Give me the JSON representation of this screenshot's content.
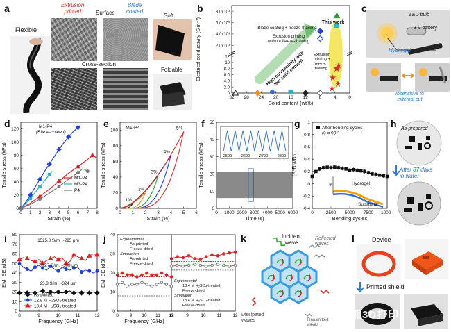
{
  "labels": {
    "a": "a",
    "b": "b",
    "c": "c",
    "d": "d",
    "e": "e",
    "f": "f",
    "g": "g",
    "h": "h",
    "i": "i",
    "j": "j",
    "k": "k",
    "l": "l"
  },
  "panel_a": {
    "flexible": "Flexible",
    "extrusion": "Extrusion\nprinted",
    "surface": "Surface",
    "blade": "Blade\ncoated",
    "cross_section": "Cross-section",
    "soft": "Soft",
    "foldable": "Foldable"
  },
  "panel_c": {
    "led": "LED bulb",
    "battery": "3 V battery",
    "hydrogel": "Hydrogel",
    "insensitive": "Insensitive to\nexternal cut"
  },
  "panel_h": {
    "as_prepared": "As-prepared",
    "after": "After 87 days\nin water"
  },
  "panel_k": {
    "incident": "Incident\nwave",
    "reflected": "Reflected\nwaves",
    "dissipated": "Dissipated\nwaves",
    "transmitted": "Transmitted\nwaves"
  },
  "panel_l": {
    "device": "Device",
    "printed_shield": "Printed shield",
    "watermark": "熊3D打印"
  },
  "colors": {
    "red": "#d62728",
    "blue": "#1f3fd6",
    "cyan": "#2bb5c8",
    "orange": "#f28c28",
    "green": "#2ca02c",
    "yellow": "#f4e24a",
    "hex": "#3a9be0"
  },
  "chart_data": [
    {
      "id": "b",
      "type": "scatter",
      "xlabel": "Solid content (wt%)",
      "ylabel": "Electrical conductivity (S m⁻¹)",
      "xticks": [
        "32",
        "28",
        "24",
        "20",
        "16",
        "12",
        "8",
        "4",
        "0"
      ],
      "yticks": [
        "0",
        "2.0",
        "4.0",
        "6.0",
        "8.0",
        "10",
        "12",
        "2.0x10³",
        "4.0x10³",
        "6.0x10³",
        "8.0x10³"
      ],
      "annotations": [
        "This work",
        "Blade coating + freeze-thawing",
        "Extrusion printing\nwithout freeze-thawing",
        "Extrusion\nprinting +\nfreeze-\nthawing",
        "High conductivity with\nlow solid content"
      ],
      "series": [
        {
          "shape": "triangle-open",
          "color": "#222222",
          "x": 31,
          "y": 0
        },
        {
          "shape": "diamond",
          "color": "#f28c28",
          "x": 25,
          "y": 0
        },
        {
          "shape": "circle",
          "color": "#3a6ed6",
          "x": 21,
          "y": 0.3
        },
        {
          "shape": "square",
          "color": "#2bb5c8",
          "x": 16,
          "y": 0.3
        },
        {
          "shape": "diamond",
          "color": "#222222",
          "x": 12,
          "y": 0
        },
        {
          "shape": "diamond-open",
          "color": "#555555",
          "x": 8,
          "y": 0
        },
        {
          "shape": "diamond",
          "color": "#1f3fd6",
          "x": 8,
          "y": 4500
        },
        {
          "shape": "diamond-open",
          "color": "#1f3fd6",
          "x": 8,
          "y": 3200
        },
        {
          "shape": "triangle",
          "color": "#2ca02c",
          "x": 3.5,
          "y": 7200
        },
        {
          "shape": "square",
          "color": "#2bb5c8",
          "x": 3.5,
          "y": 5400
        },
        {
          "shape": "star",
          "color": "#d62728",
          "x": 3.5,
          "y": 8
        }
      ]
    },
    {
      "id": "d",
      "type": "line",
      "xlabel": "Strain (%)",
      "ylabel": "Tensile stress (kPa)",
      "xlim": [
        0,
        8
      ],
      "ylim": [
        0,
        130
      ],
      "xticks": [
        0,
        1,
        2,
        3,
        4,
        5,
        6,
        7,
        8
      ],
      "yticks": [
        0,
        20,
        40,
        60,
        80,
        100,
        120
      ],
      "series": [
        {
          "name": "M1-P4 (Blade-coated)",
          "color": "#1f3fd6",
          "x": [
            0,
            0.5,
            1,
            1.5,
            2,
            2.5,
            3,
            3.5,
            4,
            4.5,
            5,
            5.5,
            6
          ],
          "y": [
            0,
            9,
            20,
            32,
            44,
            56,
            67,
            78,
            89,
            99,
            108,
            116,
            122
          ]
        },
        {
          "name": "M1-P4",
          "color": "#d62728",
          "x": [
            0,
            1,
            2,
            3,
            4,
            5,
            6,
            7,
            7.5,
            8
          ],
          "y": [
            0,
            8,
            18,
            29,
            41,
            53,
            63,
            74,
            80,
            76
          ]
        },
        {
          "name": "M3-P4",
          "color": "#2bb5c8",
          "x": [
            0,
            0.5,
            1,
            1.5,
            2,
            2.5,
            3,
            3.3
          ],
          "y": [
            0,
            7,
            15,
            24,
            33,
            42,
            51,
            56
          ]
        },
        {
          "name": "P4",
          "color": "#777777",
          "x": [
            0,
            1,
            2,
            3,
            4,
            5,
            6,
            6.5,
            7
          ],
          "y": [
            0,
            6,
            14,
            23,
            33,
            44,
            54,
            60,
            56
          ]
        }
      ]
    },
    {
      "id": "e",
      "type": "line",
      "title": "M1-P4",
      "xlabel": "Strain (%)",
      "ylabel": "Tensile stress (kPa)",
      "xlim": [
        0,
        6
      ],
      "ylim": [
        0,
        110
      ],
      "xticks": [
        0,
        1,
        2,
        3,
        4,
        5,
        6
      ],
      "yticks": [
        0,
        20,
        40,
        60,
        80,
        100
      ],
      "cycle_labels": [
        "1%",
        "2%",
        "3%",
        "4%",
        "5%"
      ],
      "series": [
        {
          "name": "1%",
          "color": "#222222",
          "peak": [
            1,
            6
          ]
        },
        {
          "name": "2%",
          "color": "#f28c28",
          "peak": [
            2,
            20
          ]
        },
        {
          "name": "3%",
          "color": "#2ca02c",
          "peak": [
            3,
            42
          ]
        },
        {
          "name": "4%",
          "color": "#1f3fd6",
          "peak": [
            4,
            68
          ]
        },
        {
          "name": "5%",
          "color": "#d62728",
          "peak": [
            5,
            98
          ]
        }
      ]
    },
    {
      "id": "f",
      "type": "line",
      "xlabel": "Time (s)",
      "ylabel": "Tensile stress (kPa)",
      "xlim": [
        0,
        6000
      ],
      "ylim": [
        0,
        50
      ],
      "xticks": [
        0,
        1000,
        2000,
        3000,
        4000,
        5000,
        6000
      ],
      "yticks": [
        0,
        10,
        20,
        30,
        40,
        50
      ],
      "inset_xticks": [
        2500,
        2600,
        2700,
        2800
      ],
      "series": [
        {
          "name": "cycles",
          "color": "#777777",
          "band": [
            6,
            21
          ]
        }
      ]
    },
    {
      "id": "g",
      "type": "line",
      "title": "After bending cycles\n(θ = 90°)",
      "xlabel": "Bending cycles",
      "ylabel": "(R-R₀)/R₀",
      "xlim": [
        0,
        10000
      ],
      "ylim": [
        -0.4,
        1.0
      ],
      "xticks": [
        0,
        2500,
        5000,
        7500,
        10000
      ],
      "yticks": [
        -0.4,
        -0.2,
        0.0,
        0.2,
        0.4,
        0.6,
        0.8,
        1.0
      ],
      "inset": [
        "Hydrogel",
        "Substrate",
        "θ"
      ],
      "series": [
        {
          "name": "After bending cycles",
          "color": "#111111",
          "x": [
            0,
            500,
            1000,
            1500,
            2000,
            2500,
            3000,
            3500,
            4000,
            4500,
            5000,
            5500,
            6000,
            6500,
            7000,
            7500,
            8000,
            8500,
            9000,
            9500,
            10000
          ],
          "y": [
            0.12,
            0.2,
            0.24,
            0.26,
            0.27,
            0.26,
            0.27,
            0.26,
            0.25,
            0.24,
            0.22,
            0.23,
            0.22,
            0.21,
            0.2,
            0.18,
            0.16,
            0.15,
            0.14,
            0.13,
            0.12
          ]
        }
      ]
    },
    {
      "id": "i",
      "type": "line",
      "xlabel": "Frequency (GHz)",
      "ylabel": "EMI SE (dB)",
      "xlim": [
        8,
        12
      ],
      "ylim": [
        0,
        80
      ],
      "xticks": [
        8,
        9,
        10,
        11,
        12
      ],
      "yticks": [
        0,
        10,
        20,
        30,
        40,
        50,
        60,
        70,
        80
      ],
      "annotations": [
        "1525.8 S/m, ~295 μm",
        "785.7 S/m, ~308 μm",
        "25.8 S/m, ~324 μm"
      ],
      "series": [
        {
          "name": "As-printed",
          "color": "#111111",
          "marker": "diamond",
          "y": [
            19,
            20,
            19,
            20,
            19,
            20,
            21,
            19,
            20,
            19,
            20,
            19,
            20,
            21,
            19,
            20,
            19,
            20,
            19,
            20,
            19
          ]
        },
        {
          "name": "12.9 M H₂SO₄-treated",
          "color": "#1f3fd6",
          "marker": "circle",
          "y": [
            50,
            46,
            44,
            42,
            46,
            48,
            45,
            43,
            47,
            44,
            42,
            46,
            44,
            43,
            45,
            46,
            41,
            43,
            42,
            40,
            42
          ]
        },
        {
          "name": "18.4 M H₂SO₄-treated",
          "color": "#d62728",
          "marker": "triangle",
          "y": [
            54,
            56,
            55,
            53,
            52,
            54,
            50,
            53,
            55,
            57,
            54,
            56,
            50,
            52,
            59,
            57,
            55,
            53,
            58,
            60,
            59
          ]
        }
      ]
    },
    {
      "id": "j",
      "type": "line",
      "xlabel": "Frequency (GHz)",
      "ylabel": "EMI SE (dB)",
      "xlim": [
        8,
        12
      ],
      "ylim": [
        0,
        80
      ],
      "xticks": [
        8,
        9,
        10,
        11,
        12
      ],
      "yticks": [
        0,
        10,
        20,
        30,
        40,
        50,
        60,
        70,
        80
      ],
      "legend_left": [
        "Experimental",
        "As-printed",
        "Freeze-dried",
        "Simulation",
        "As-printed",
        "Freeze-dried"
      ],
      "legend_right": [
        "Experimental",
        "18.4 M H₂SO₄-treated",
        "Freeze-dried",
        "Simulation",
        "18.4 M H₂SO₄-treated",
        "Freeze-dried"
      ],
      "series": [
        {
          "name": "As-printed (exp)",
          "color": "#d62728",
          "y": [
            19,
            20,
            19,
            19,
            18,
            19,
            20,
            19,
            19,
            20,
            19,
            18
          ]
        },
        {
          "name": "Freeze-dried (exp)",
          "color": "#777777",
          "y": [
            14,
            15,
            13,
            14,
            14,
            15,
            14,
            13,
            14,
            15,
            14,
            13
          ]
        },
        {
          "name": "As-printed (sim)",
          "color": "#d62728",
          "y": [
            18,
            18,
            18,
            18,
            18,
            18,
            18,
            18,
            18,
            18,
            18,
            18
          ]
        },
        {
          "name": "Freeze-dried (sim)",
          "color": "#777777",
          "y": [
            8,
            8,
            8,
            8,
            8,
            8,
            8,
            8,
            8,
            8,
            8,
            8
          ]
        },
        {
          "name": "18.4 M treated (exp)",
          "color": "#d62728",
          "y": [
            55,
            57,
            56,
            58,
            55,
            54,
            57,
            59,
            58,
            60,
            61,
            62
          ]
        },
        {
          "name": "Freeze-dried treated (exp)",
          "color": "#777777",
          "y": [
            47,
            48,
            47,
            48,
            49,
            48,
            47,
            48,
            49,
            48,
            47,
            48
          ]
        },
        {
          "name": "18.4 M treated (sim)",
          "color": "#d62728",
          "y": [
            52,
            52,
            52,
            52,
            52,
            52,
            52,
            52,
            52,
            52,
            52,
            52
          ]
        },
        {
          "name": "Freeze-dried treated (sim)",
          "color": "#777777",
          "y": [
            43,
            43,
            43,
            43,
            43,
            43,
            43,
            43,
            43,
            43,
            43,
            43
          ]
        }
      ]
    }
  ]
}
